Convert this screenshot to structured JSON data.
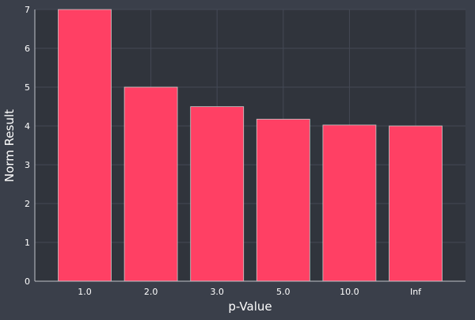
{
  "chart_data": {
    "type": "bar",
    "title": "",
    "xlabel": "p-Value",
    "ylabel": "Norm Result",
    "categories": [
      "1.0",
      "2.0",
      "3.0",
      "5.0",
      "10.0",
      "Inf"
    ],
    "values": [
      7.0,
      5.0,
      4.497,
      4.174,
      4.023,
      4.0
    ],
    "ylim": [
      0,
      7
    ],
    "yticks": [
      "0",
      "1",
      "2",
      "3",
      "4",
      "5",
      "6",
      "7"
    ],
    "grid": true,
    "legend": "none"
  },
  "colors": {
    "background": "#3a3f4a",
    "plot_area": "#30343c",
    "bar_fill": "#ff4064",
    "bar_stroke": "#c9c9c9",
    "axis_text": "#ffffff",
    "grid": "#444955"
  }
}
